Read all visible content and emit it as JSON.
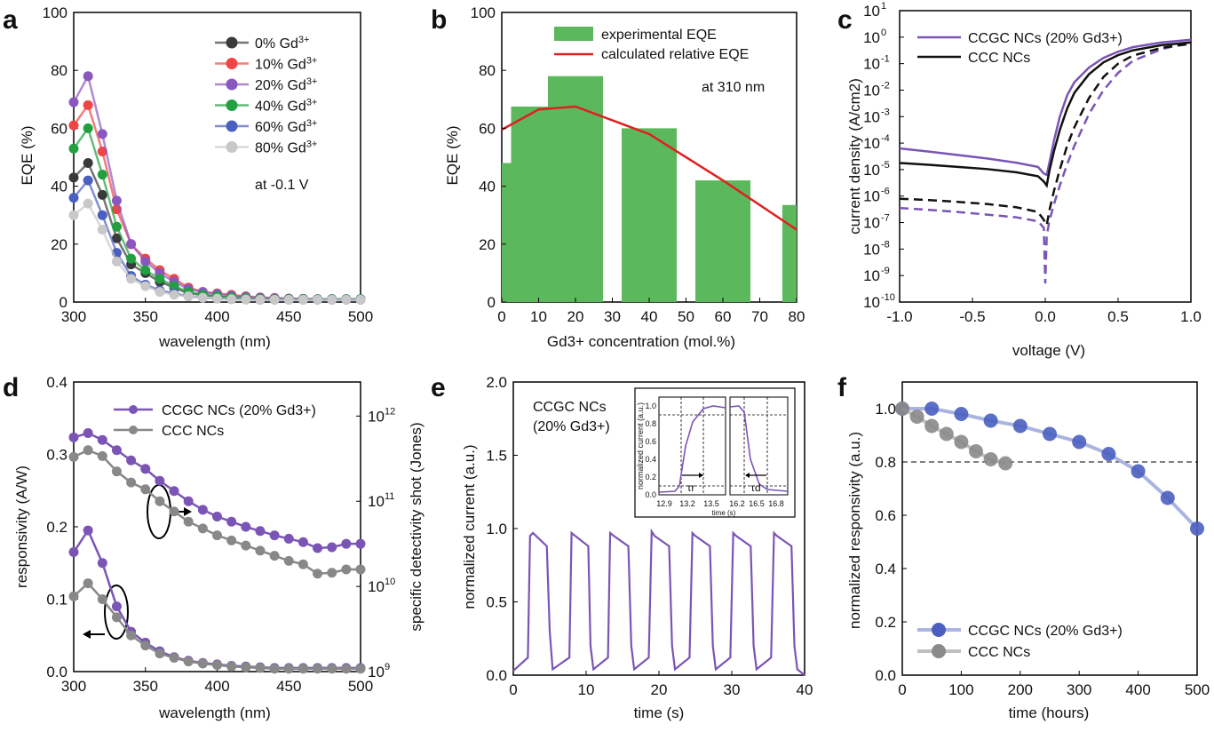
{
  "chart_data": [
    {
      "panel": "a",
      "type": "line",
      "xlabel": "wavelength (nm)",
      "ylabel": "EQE (%)",
      "xlim": [
        300,
        500
      ],
      "ylim": [
        0,
        100
      ],
      "xticks": [
        300,
        350,
        400,
        450,
        500
      ],
      "yticks": [
        0,
        20,
        40,
        60,
        80,
        100
      ],
      "annotation": "at -0.1 V",
      "legend_position": "top-right",
      "x": [
        300,
        310,
        320,
        330,
        340,
        350,
        360,
        370,
        380,
        390,
        400,
        410,
        420,
        430,
        440,
        450,
        460,
        470,
        480,
        490,
        500
      ],
      "series": [
        {
          "name": "0% Gd3+",
          "color": "#3a3a3a",
          "values": [
            43,
            48,
            37,
            22,
            13,
            10,
            7,
            5,
            3,
            2.5,
            2,
            1.5,
            1.2,
            1,
            1,
            1,
            1,
            1,
            1,
            1,
            1
          ]
        },
        {
          "name": "10% Gd3+",
          "color": "#f04545",
          "values": [
            61,
            68,
            52,
            32,
            20,
            15,
            11,
            8,
            5,
            3.5,
            3,
            2.5,
            2,
            1.6,
            1.4,
            1.2,
            1.1,
            1,
            1,
            1,
            1
          ]
        },
        {
          "name": "20% Gd3+",
          "color": "#8a57bf",
          "values": [
            69,
            78,
            58,
            35,
            20,
            14,
            10,
            7,
            4.5,
            3.5,
            2.8,
            2.2,
            1.8,
            1.5,
            1.3,
            1.2,
            1.1,
            1,
            1,
            1,
            1
          ]
        },
        {
          "name": "40% Gd3+",
          "color": "#22a040",
          "values": [
            53,
            60,
            44,
            26,
            15,
            11,
            8,
            5.5,
            3.5,
            2.5,
            2,
            1.6,
            1.3,
            1.1,
            1,
            1,
            1,
            1,
            1,
            1,
            1
          ]
        },
        {
          "name": "60% Gd3+",
          "color": "#4a5fc0",
          "values": [
            36,
            42,
            30,
            17,
            9,
            6,
            4,
            3,
            2,
            1.5,
            1.2,
            1,
            0.9,
            0.8,
            0.8,
            0.8,
            0.8,
            0.8,
            0.8,
            0.8,
            0.8
          ]
        },
        {
          "name": "80% Gd3+",
          "color": "#c8c8c8",
          "values": [
            30,
            34,
            25,
            14,
            8,
            5.5,
            3.5,
            2.5,
            2,
            1.5,
            1.2,
            1,
            0.9,
            0.8,
            0.8,
            0.8,
            0.8,
            0.8,
            0.8,
            0.8,
            0.8
          ]
        }
      ]
    },
    {
      "panel": "b",
      "type": "bar",
      "xlabel": "Gd3+ concentration (mol.%)",
      "ylabel": "EQE (%)",
      "xlim": [
        0,
        80
      ],
      "ylim": [
        0,
        100
      ],
      "xticks": [
        0,
        10,
        20,
        30,
        40,
        50,
        60,
        70,
        80
      ],
      "yticks": [
        0,
        20,
        40,
        60,
        80,
        100
      ],
      "annotation": "at 310 nm",
      "legend_position": "top",
      "bar_color": "#5cb85c",
      "line_color": "#e02020",
      "bars": {
        "name": "experimental EQE",
        "x": [
          0,
          10,
          20,
          40,
          60,
          80
        ],
        "values": [
          48,
          67.5,
          78,
          60,
          42,
          33.5
        ]
      },
      "line": {
        "name": "calculated relative EQE",
        "x": [
          0,
          10,
          20,
          40,
          60,
          80
        ],
        "values": [
          59.5,
          66.5,
          67.5,
          58,
          42,
          25
        ]
      }
    },
    {
      "panel": "c",
      "type": "line",
      "scale_y": "log",
      "xlabel": "voltage (V)",
      "ylabel": "current density (A/cm2)",
      "xlim": [
        -1,
        1
      ],
      "ylim_exp": [
        -10,
        1
      ],
      "xticks": [
        -1.0,
        -0.5,
        0.0,
        0.5,
        1.0
      ],
      "ytick_exponents": [
        1,
        0,
        -1,
        -2,
        -3,
        -4,
        -5,
        -6,
        -7,
        -8,
        -9,
        -10
      ],
      "legend_position": "top-left",
      "series": [
        {
          "name": "CCGC NCs (20% Gd3+)",
          "color": "#7a55b5",
          "style": "solid",
          "x": [
            -1.0,
            -0.8,
            -0.6,
            -0.4,
            -0.2,
            -0.05,
            -0.01,
            0.01,
            0.03,
            0.06,
            0.1,
            0.15,
            0.2,
            0.3,
            0.4,
            0.5,
            0.6,
            0.8,
            1.0
          ],
          "log10_y": [
            -4.2,
            -4.32,
            -4.45,
            -4.58,
            -4.74,
            -4.9,
            -5.15,
            -5.2,
            -4.7,
            -3.9,
            -3.0,
            -2.2,
            -1.7,
            -1.15,
            -0.78,
            -0.55,
            -0.38,
            -0.2,
            -0.1
          ]
        },
        {
          "name": "",
          "color": "#7a55b5",
          "style": "dashed",
          "x": [
            -1.0,
            -0.8,
            -0.6,
            -0.4,
            -0.2,
            -0.05,
            -0.01,
            0.0,
            0.01,
            0.03,
            0.06,
            0.1,
            0.15,
            0.2,
            0.3,
            0.4,
            0.5,
            0.6,
            0.8,
            1.0
          ],
          "log10_y": [
            -6.45,
            -6.52,
            -6.6,
            -6.7,
            -6.8,
            -6.95,
            -7.2,
            -9.3,
            -7.5,
            -6.9,
            -6.3,
            -5.6,
            -4.8,
            -4.1,
            -2.9,
            -2.0,
            -1.35,
            -0.9,
            -0.45,
            -0.2
          ]
        },
        {
          "name": "CCC NCs",
          "color": "#111111",
          "style": "solid",
          "x": [
            -1.0,
            -0.8,
            -0.6,
            -0.4,
            -0.2,
            -0.05,
            -0.01,
            0.01,
            0.03,
            0.06,
            0.1,
            0.15,
            0.2,
            0.3,
            0.4,
            0.5,
            0.6,
            0.8,
            1.0
          ],
          "log10_y": [
            -4.75,
            -4.82,
            -4.9,
            -4.98,
            -5.1,
            -5.25,
            -5.45,
            -5.6,
            -5.0,
            -4.3,
            -3.5,
            -2.7,
            -2.1,
            -1.4,
            -0.95,
            -0.68,
            -0.5,
            -0.3,
            -0.2
          ]
        },
        {
          "name": "",
          "color": "#111111",
          "style": "dashed",
          "x": [
            -1.0,
            -0.8,
            -0.6,
            -0.4,
            -0.2,
            -0.05,
            -0.01,
            0.01,
            0.03,
            0.06,
            0.1,
            0.15,
            0.2,
            0.3,
            0.4,
            0.5,
            0.6,
            0.8,
            1.0
          ],
          "log10_y": [
            -6.1,
            -6.15,
            -6.22,
            -6.3,
            -6.42,
            -6.6,
            -6.9,
            -7.1,
            -6.5,
            -5.8,
            -5.0,
            -4.1,
            -3.4,
            -2.3,
            -1.5,
            -1.0,
            -0.7,
            -0.4,
            -0.25
          ]
        }
      ]
    },
    {
      "panel": "d",
      "type": "line",
      "xlabel": "wavelength (nm)",
      "ylabel": "responsivity (A/W)",
      "ylabel_right": "specific detectivity shot (Jones)",
      "xlim": [
        300,
        500
      ],
      "ylim": [
        0,
        0.4
      ],
      "xticks": [
        300,
        350,
        400,
        450,
        500
      ],
      "yticks": [
        0.0,
        0.1,
        0.2,
        0.3,
        0.4
      ],
      "right_ytick_exponents": [
        9,
        10,
        11,
        12
      ],
      "right_log_range": [
        9,
        12.4
      ],
      "legend_position": "top",
      "x": [
        300,
        310,
        320,
        330,
        340,
        350,
        360,
        370,
        380,
        390,
        400,
        410,
        420,
        430,
        440,
        450,
        460,
        470,
        480,
        490,
        500
      ],
      "series": [
        {
          "name": "CCGC NCs (20% Gd3+)",
          "axis": "left",
          "color": "#7a55b5",
          "values": [
            0.165,
            0.195,
            0.15,
            0.09,
            0.055,
            0.04,
            0.028,
            0.02,
            0.015,
            0.012,
            0.01,
            0.008,
            0.007,
            0.006,
            0.005,
            0.005,
            0.005,
            0.005,
            0.005,
            0.005,
            0.005
          ]
        },
        {
          "name": "CCC NCs",
          "axis": "left",
          "color": "#888888",
          "values": [
            0.104,
            0.122,
            0.1,
            0.075,
            0.05,
            0.036,
            0.025,
            0.019,
            0.014,
            0.011,
            0.009,
            0.007,
            0.006,
            0.005,
            0.004,
            0.004,
            0.004,
            0.004,
            0.004,
            0.004,
            0.004
          ]
        },
        {
          "name": "",
          "axis": "right",
          "color": "#7a55b5",
          "values_log10": [
            11.75,
            11.8,
            11.72,
            11.6,
            11.48,
            11.38,
            11.24,
            11.12,
            11.0,
            10.9,
            10.82,
            10.76,
            10.7,
            10.65,
            10.6,
            10.56,
            10.52,
            10.45,
            10.46,
            10.5,
            10.5
          ]
        },
        {
          "name": "",
          "axis": "right",
          "color": "#888888",
          "values_log10": [
            11.52,
            11.6,
            11.53,
            11.35,
            11.22,
            11.14,
            11.0,
            10.88,
            10.76,
            10.68,
            10.6,
            10.54,
            10.48,
            10.42,
            10.36,
            10.3,
            10.26,
            10.15,
            10.16,
            10.2,
            10.2
          ]
        }
      ]
    },
    {
      "panel": "e",
      "type": "line",
      "xlabel": "time (s)",
      "ylabel": "normalized current (a.u.)",
      "xlim": [
        0,
        40
      ],
      "ylim": [
        0,
        2.0
      ],
      "xticks": [
        0,
        10,
        20,
        30,
        40
      ],
      "yticks": [
        0.0,
        0.5,
        1.0,
        1.5,
        2.0
      ],
      "annotation_lines": [
        "CCGC NCs",
        "(20% Gd3+)"
      ],
      "series": [
        {
          "name": "",
          "color": "#7a55b5",
          "x": [
            0,
            2.0,
            2.3,
            2.7,
            4.6,
            5.0,
            5.4,
            7.7,
            8.0,
            8.5,
            10.3,
            10.6,
            11.0,
            13.0,
            13.3,
            13.8,
            15.8,
            16.2,
            16.6,
            18.6,
            19.0,
            19.4,
            21.4,
            21.8,
            22.2,
            24.2,
            24.6,
            25.0,
            27.0,
            27.4,
            27.8,
            29.8,
            30.2,
            30.6,
            32.6,
            33.0,
            33.4,
            35.4,
            35.8,
            36.2,
            38.2,
            38.6,
            39.0,
            40.0
          ],
          "y": [
            0.03,
            0.12,
            0.95,
            0.97,
            0.88,
            0.3,
            0.04,
            0.12,
            0.97,
            0.95,
            0.88,
            0.2,
            0.04,
            0.12,
            0.97,
            0.95,
            0.88,
            0.2,
            0.04,
            0.12,
            0.98,
            0.95,
            0.88,
            0.2,
            0.04,
            0.12,
            0.97,
            0.95,
            0.88,
            0.2,
            0.04,
            0.12,
            0.97,
            0.95,
            0.88,
            0.2,
            0.04,
            0.12,
            0.97,
            0.95,
            0.88,
            0.2,
            0.04,
            0.0
          ]
        }
      ],
      "inset": {
        "ylabel": "normalized current (a.u.)",
        "xlabel": "time (s)",
        "yticks": [
          0.0,
          0.2,
          0.4,
          0.6,
          0.8,
          1.0
        ],
        "rise_xticks": [
          "12.9",
          "13.2",
          "13.5"
        ],
        "decay_xticks": [
          "16.2",
          "16.5",
          "16.8"
        ],
        "rise_label": "τr",
        "decay_label": "τd"
      }
    },
    {
      "panel": "f",
      "type": "line",
      "xlabel": "time (hours)",
      "ylabel": "normalized responsivity (a.u.)",
      "xlim": [
        0,
        500
      ],
      "ylim": [
        0,
        1.1
      ],
      "xticks": [
        0,
        100,
        200,
        300,
        400,
        500
      ],
      "yticks": [
        0.0,
        0.2,
        0.4,
        0.6,
        0.8,
        1.0
      ],
      "reference_line": 0.8,
      "legend_position": "bottom-left",
      "series": [
        {
          "name": "CCGC NCs (20% Gd3+)",
          "color": "#4a5fc0",
          "line_color": "#aab4e0",
          "x": [
            0,
            50,
            100,
            150,
            200,
            250,
            300,
            350,
            400,
            450,
            500
          ],
          "values": [
            1.0,
            1.0,
            0.98,
            0.955,
            0.935,
            0.905,
            0.875,
            0.83,
            0.765,
            0.665,
            0.55
          ]
        },
        {
          "name": "CCC NCs",
          "color": "#8a8a8a",
          "line_color": "#c0c0c0",
          "x": [
            0,
            25,
            50,
            75,
            100,
            125,
            150,
            175
          ],
          "values": [
            1.0,
            0.97,
            0.935,
            0.905,
            0.875,
            0.84,
            0.81,
            0.795
          ]
        }
      ]
    }
  ],
  "panel_labels": [
    "a",
    "b",
    "c",
    "d",
    "e",
    "f"
  ],
  "text": {
    "a_xlabel": "wavelength (nm)",
    "a_ylabel": "EQE (%)",
    "a_note": "at -0.1 V",
    "b_xlabel": "Gd3+ concentration (mol.%)",
    "b_ylabel": "EQE (%)",
    "b_note": "at 310 nm",
    "b_leg1": "experimental EQE",
    "b_leg2": "calculated relative EQE",
    "c_xlabel": "voltage (V)",
    "c_ylabel": "current density (A/cm2)",
    "c_leg1": "CCGC NCs (20% Gd3+)",
    "c_leg2": "CCC NCs",
    "d_xlabel": "wavelength (nm)",
    "d_ylabel": "responsivity (A/W)",
    "d_ylabel_right": "specific detectivity shot (Jones)",
    "d_leg1": "CCGC NCs (20% Gd3+)",
    "d_leg2": "CCC NCs",
    "e_xlabel": "time (s)",
    "e_ylabel": "normalized current (a.u.)",
    "e_note1": "CCGC NCs",
    "e_note2": "(20% Gd3+)",
    "f_xlabel": "time (hours)",
    "f_ylabel": "normalized responsivity (a.u.)",
    "f_leg1": "CCGC NCs (20% Gd3+)",
    "f_leg2": "CCC NCs"
  }
}
